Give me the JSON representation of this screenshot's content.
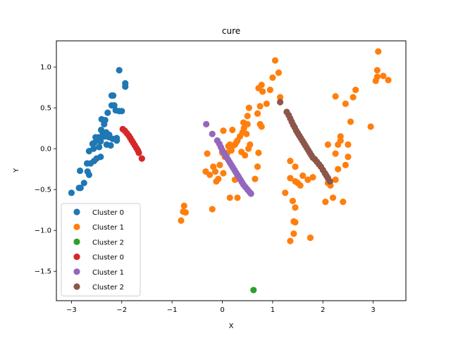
{
  "chart_data": {
    "type": "scatter",
    "title": "cure",
    "xlabel": "X",
    "ylabel": "Y",
    "xlim": [
      -3.3,
      3.65
    ],
    "ylim": [
      -1.86,
      1.32
    ],
    "xticks": [
      -3,
      -2,
      -1,
      0,
      1,
      2,
      3
    ],
    "yticks": [
      -1.5,
      -1.0,
      -0.5,
      0.0,
      0.5,
      1.0
    ],
    "xtick_labels": [
      "−3",
      "−2",
      "−1",
      "0",
      "1",
      "2",
      "3"
    ],
    "ytick_labels": [
      "−1.5",
      "−1.0",
      "−0.5",
      "0.0",
      "0.5",
      "1.0"
    ],
    "grid": false,
    "legend_position": "lower-left",
    "series": [
      {
        "name": "Cluster 0",
        "color": "#1f77b4",
        "points": [
          [
            -3.0,
            -0.54
          ],
          [
            -2.82,
            -0.48
          ],
          [
            -2.85,
            -0.48
          ],
          [
            -2.75,
            -0.42
          ],
          [
            -2.65,
            -0.32
          ],
          [
            -2.68,
            -0.28
          ],
          [
            -2.83,
            -0.27
          ],
          [
            -2.62,
            -0.18
          ],
          [
            -2.69,
            -0.18
          ],
          [
            -2.55,
            -0.15
          ],
          [
            -2.65,
            -0.03
          ],
          [
            -2.5,
            -0.12
          ],
          [
            -2.42,
            -0.1
          ],
          [
            -2.56,
            0.0
          ],
          [
            -2.45,
            0.02
          ],
          [
            -2.58,
            0.06
          ],
          [
            -2.55,
            0.07
          ],
          [
            -2.48,
            0.1
          ],
          [
            -2.42,
            0.09
          ],
          [
            -2.52,
            0.14
          ],
          [
            -2.46,
            0.14
          ],
          [
            -2.4,
            0.14
          ],
          [
            -2.33,
            0.15
          ],
          [
            -2.25,
            0.14
          ],
          [
            -2.38,
            0.2
          ],
          [
            -2.31,
            0.2
          ],
          [
            -2.25,
            0.17
          ],
          [
            -2.41,
            0.23
          ],
          [
            -2.18,
            0.12
          ],
          [
            -2.1,
            0.1
          ],
          [
            -2.22,
            0.04
          ],
          [
            -2.3,
            0.05
          ],
          [
            -2.1,
            0.13
          ],
          [
            -2.35,
            0.3
          ],
          [
            -2.4,
            0.36
          ],
          [
            -2.33,
            0.35
          ],
          [
            -2.28,
            0.44
          ],
          [
            -2.2,
            0.53
          ],
          [
            -2.15,
            0.53
          ],
          [
            -2.12,
            0.47
          ],
          [
            -2.05,
            0.46
          ],
          [
            -2.0,
            0.46
          ],
          [
            -2.2,
            0.65
          ],
          [
            -2.17,
            0.65
          ],
          [
            -2.05,
            0.96
          ],
          [
            -1.93,
            0.76
          ],
          [
            -1.93,
            0.8
          ]
        ]
      },
      {
        "name": "Cluster 1",
        "color": "#ff7f0e",
        "points": [
          [
            -0.82,
            -0.88
          ],
          [
            -0.78,
            -0.77
          ],
          [
            -0.73,
            -0.78
          ],
          [
            -0.76,
            -0.7
          ],
          [
            -0.2,
            -0.74
          ],
          [
            -0.33,
            -0.28
          ],
          [
            -0.3,
            -0.06
          ],
          [
            -0.25,
            -0.32
          ],
          [
            -0.18,
            -0.22
          ],
          [
            -0.14,
            -0.28
          ],
          [
            -0.12,
            -0.4
          ],
          [
            -0.08,
            -0.37
          ],
          [
            -0.05,
            -0.2
          ],
          [
            0.02,
            -0.3
          ],
          [
            0.0,
            -0.05
          ],
          [
            0.05,
            -0.1
          ],
          [
            0.1,
            -0.05
          ],
          [
            0.12,
            0.03
          ],
          [
            0.15,
            0.05
          ],
          [
            0.18,
            -0.02
          ],
          [
            0.22,
            0.04
          ],
          [
            0.25,
            0.05
          ],
          [
            0.28,
            0.08
          ],
          [
            0.3,
            0.1
          ],
          [
            0.35,
            0.15
          ],
          [
            0.4,
            0.2
          ],
          [
            0.02,
            0.22
          ],
          [
            0.2,
            0.23
          ],
          [
            0.43,
            0.25
          ],
          [
            0.42,
            0.32
          ],
          [
            0.48,
            0.18
          ],
          [
            0.52,
            0.0
          ],
          [
            0.55,
            0.05
          ],
          [
            0.45,
            -0.08
          ],
          [
            0.38,
            -0.04
          ],
          [
            0.25,
            -0.38
          ],
          [
            0.3,
            -0.6
          ],
          [
            0.15,
            -0.6
          ],
          [
            0.5,
            0.3
          ],
          [
            0.5,
            0.4
          ],
          [
            0.53,
            0.5
          ],
          [
            0.7,
            0.43
          ],
          [
            0.75,
            0.52
          ],
          [
            0.8,
            0.7
          ],
          [
            0.72,
            0.74
          ],
          [
            0.78,
            0.78
          ],
          [
            0.88,
            0.55
          ],
          [
            0.95,
            0.72
          ],
          [
            1.0,
            0.87
          ],
          [
            1.05,
            1.08
          ],
          [
            1.12,
            0.93
          ],
          [
            1.15,
            0.63
          ],
          [
            0.75,
            0.3
          ],
          [
            0.78,
            0.27
          ],
          [
            0.72,
            -0.05
          ],
          [
            0.7,
            -0.22
          ],
          [
            0.65,
            -0.37
          ],
          [
            1.25,
            -0.54
          ],
          [
            1.35,
            -0.15
          ],
          [
            1.35,
            -0.36
          ],
          [
            1.4,
            -0.64
          ],
          [
            1.45,
            -0.4
          ],
          [
            1.45,
            -0.22
          ],
          [
            1.5,
            -0.42
          ],
          [
            1.55,
            -0.45
          ],
          [
            1.45,
            -0.72
          ],
          [
            1.42,
            -0.89
          ],
          [
            1.45,
            -0.9
          ],
          [
            1.42,
            -1.04
          ],
          [
            1.35,
            -1.13
          ],
          [
            1.6,
            -0.33
          ],
          [
            1.7,
            -0.38
          ],
          [
            1.8,
            -0.35
          ],
          [
            1.75,
            -1.09
          ],
          [
            2.05,
            -0.65
          ],
          [
            2.1,
            -0.42
          ],
          [
            2.15,
            -0.45
          ],
          [
            2.2,
            -0.6
          ],
          [
            2.25,
            -0.38
          ],
          [
            2.3,
            -0.25
          ],
          [
            2.4,
            -0.65
          ],
          [
            2.1,
            0.05
          ],
          [
            2.25,
            -0.06
          ],
          [
            2.3,
            0.05
          ],
          [
            2.35,
            0.15
          ],
          [
            2.35,
            0.1
          ],
          [
            2.25,
            0.64
          ],
          [
            2.45,
            -0.2
          ],
          [
            2.5,
            0.05
          ],
          [
            2.5,
            -0.1
          ],
          [
            2.45,
            0.55
          ],
          [
            2.55,
            0.33
          ],
          [
            2.6,
            0.63
          ],
          [
            2.65,
            0.72
          ],
          [
            2.95,
            0.27
          ],
          [
            3.05,
            0.83
          ],
          [
            3.08,
            0.88
          ],
          [
            3.08,
            0.96
          ],
          [
            3.1,
            1.19
          ],
          [
            3.2,
            0.89
          ],
          [
            3.3,
            0.84
          ]
        ]
      },
      {
        "name": "Cluster 2",
        "color": "#2ca02c",
        "points": [
          [
            0.62,
            -1.73
          ]
        ]
      },
      {
        "name": "Cluster 0",
        "color": "#d62728",
        "points": [
          [
            -1.98,
            0.24
          ],
          [
            -1.94,
            0.22
          ],
          [
            -1.9,
            0.19
          ],
          [
            -1.86,
            0.16
          ],
          [
            -1.83,
            0.13
          ],
          [
            -1.8,
            0.1
          ],
          [
            -1.77,
            0.07
          ],
          [
            -1.74,
            0.04
          ],
          [
            -1.71,
            0.01
          ],
          [
            -1.68,
            -0.02
          ],
          [
            -1.66,
            -0.05
          ],
          [
            -1.6,
            -0.12
          ]
        ]
      },
      {
        "name": "Cluster 1",
        "color": "#9467bd",
        "points": [
          [
            -0.32,
            0.3
          ],
          [
            -0.2,
            0.18
          ],
          [
            -0.1,
            0.1
          ],
          [
            -0.06,
            0.06
          ],
          [
            -0.03,
            0.02
          ],
          [
            0.0,
            -0.02
          ],
          [
            0.03,
            -0.05
          ],
          [
            0.06,
            -0.08
          ],
          [
            0.09,
            -0.11
          ],
          [
            0.12,
            -0.14
          ],
          [
            0.15,
            -0.17
          ],
          [
            0.18,
            -0.2
          ],
          [
            0.21,
            -0.23
          ],
          [
            0.24,
            -0.26
          ],
          [
            0.27,
            -0.29
          ],
          [
            0.3,
            -0.32
          ],
          [
            0.33,
            -0.35
          ],
          [
            0.36,
            -0.38
          ],
          [
            0.39,
            -0.41
          ],
          [
            0.42,
            -0.44
          ],
          [
            0.46,
            -0.47
          ],
          [
            0.5,
            -0.5
          ],
          [
            0.54,
            -0.53
          ],
          [
            0.57,
            -0.55
          ]
        ]
      },
      {
        "name": "Cluster 2",
        "color": "#8c564b",
        "points": [
          [
            1.15,
            0.57
          ],
          [
            1.28,
            0.45
          ],
          [
            1.32,
            0.41
          ],
          [
            1.35,
            0.37
          ],
          [
            1.38,
            0.33
          ],
          [
            1.41,
            0.29
          ],
          [
            1.44,
            0.26
          ],
          [
            1.47,
            0.22
          ],
          [
            1.5,
            0.19
          ],
          [
            1.53,
            0.16
          ],
          [
            1.56,
            0.13
          ],
          [
            1.59,
            0.1
          ],
          [
            1.62,
            0.07
          ],
          [
            1.65,
            0.04
          ],
          [
            1.68,
            0.01
          ],
          [
            1.71,
            -0.02
          ],
          [
            1.74,
            -0.05
          ],
          [
            1.77,
            -0.08
          ],
          [
            1.8,
            -0.11
          ],
          [
            1.84,
            -0.13
          ],
          [
            1.88,
            -0.16
          ],
          [
            1.92,
            -0.19
          ],
          [
            1.96,
            -0.22
          ],
          [
            2.0,
            -0.26
          ],
          [
            2.04,
            -0.3
          ],
          [
            2.07,
            -0.33
          ],
          [
            2.1,
            -0.36
          ],
          [
            2.14,
            -0.4
          ]
        ]
      }
    ]
  }
}
